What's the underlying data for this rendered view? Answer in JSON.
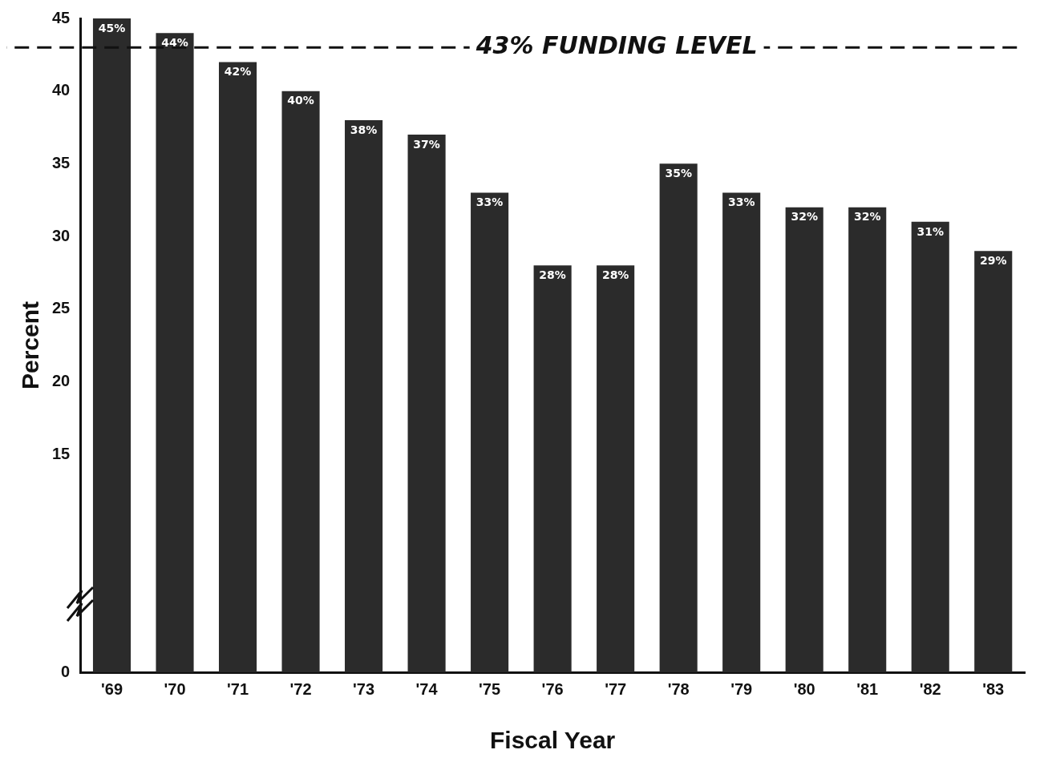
{
  "chart_data": {
    "type": "bar",
    "xlabel": "Fiscal Year",
    "ylabel": "Percent",
    "categories": [
      "'69",
      "'70",
      "'71",
      "'72",
      "'73",
      "'74",
      "'75",
      "'76",
      "'77",
      "'78",
      "'79",
      "'80",
      "'81",
      "'82",
      "'83"
    ],
    "values": [
      45,
      44,
      42,
      40,
      38,
      37,
      33,
      28,
      28,
      35,
      33,
      32,
      32,
      31,
      29
    ],
    "value_labels": [
      "45%",
      "44%",
      "42%",
      "40%",
      "38%",
      "37%",
      "33%",
      "28%",
      "28%",
      "35%",
      "33%",
      "32%",
      "32%",
      "31%",
      "29%"
    ],
    "color": "#2b2b2b",
    "ylim": [
      0,
      45
    ],
    "yticks": [
      0,
      15,
      20,
      25,
      30,
      35,
      40,
      45
    ],
    "ref_lines": [
      {
        "axis": "y",
        "value": 43,
        "label": "43% FUNDING LEVEL",
        "line_style": "dashed",
        "color": "#111111"
      }
    ],
    "grid": false,
    "legend": false
  }
}
